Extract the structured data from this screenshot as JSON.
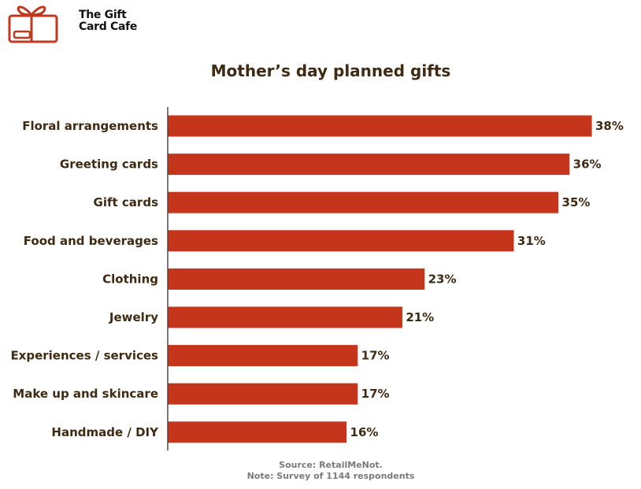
{
  "brand": {
    "name_line1": "The Gift",
    "name_line2": "Card Cafe",
    "icon": "gift-card-icon",
    "accent": "#c0391f"
  },
  "chart_data": {
    "type": "bar",
    "orientation": "horizontal",
    "title": "Mother’s day planned gifts",
    "categories": [
      "Floral arrangements",
      "Greeting cards",
      "Gift cards",
      "Food and beverages",
      "Clothing",
      "Jewelry",
      "Experiences / services",
      "Make up and skincare",
      "Handmade / DIY"
    ],
    "values": [
      38,
      36,
      35,
      31,
      23,
      21,
      17,
      17,
      16
    ],
    "value_labels": [
      "38%",
      "36%",
      "35%",
      "31%",
      "23%",
      "21%",
      "17%",
      "17%",
      "16%"
    ],
    "unit": "%",
    "xlim": [
      0,
      38
    ],
    "grid": false,
    "bar_color": "#c4351c",
    "xlabel": "",
    "ylabel": ""
  },
  "footer": {
    "source": "Source: RetailMeNot.",
    "note": "Note: Survey of 1144 respondents"
  }
}
